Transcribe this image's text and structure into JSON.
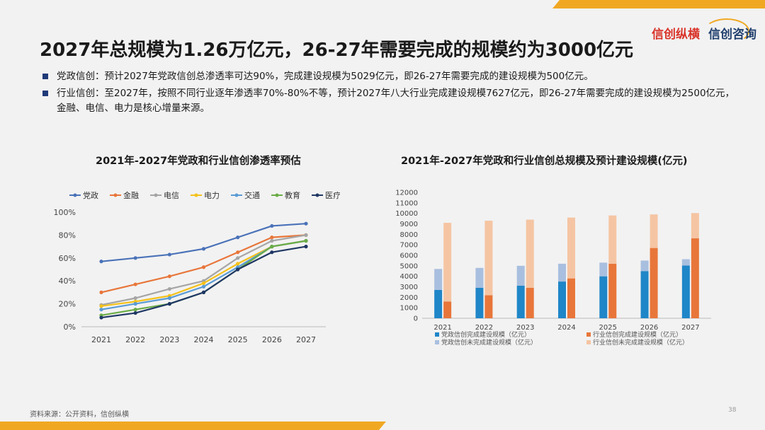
{
  "header": {
    "title": "2027年总规模为1.26万亿元，26-27年需要完成的规模约为3000亿元",
    "logo_left": "信创纵横",
    "logo_right": "信创咨询"
  },
  "bullets": [
    "党政信创：预计2027年党政信创总渗透率可达90%，完成建设规模为5029亿元，即26-27年需要完成的建设规模为500亿元。",
    "行业信创：至2027年，按照不同行业逐年渗透率70%-80%不等，预计2027年八大行业完成建设规模7627亿元，即26-27年需要完成的建设规模为2500亿元，金融、电信、电力是核心增量来源。"
  ],
  "chart_data": [
    {
      "type": "line",
      "title": "2021年-2027年党政和行业信创渗透率预估",
      "x": [
        "2021",
        "2022",
        "2023",
        "2024",
        "2025",
        "2026",
        "2027"
      ],
      "yticks": [
        "0%",
        "20%",
        "40%",
        "60%",
        "80%",
        "100%"
      ],
      "ylim": [
        0,
        100
      ],
      "legend": "top",
      "series": [
        {
          "name": "党政",
          "color": "#4a72b8",
          "values": [
            57,
            60,
            63,
            68,
            78,
            88,
            90
          ]
        },
        {
          "name": "金融",
          "color": "#e8763a",
          "values": [
            30,
            37,
            44,
            52,
            65,
            78,
            80
          ]
        },
        {
          "name": "电信",
          "color": "#a5a5a5",
          "values": [
            19,
            25,
            33,
            40,
            60,
            75,
            80
          ]
        },
        {
          "name": "电力",
          "color": "#f4c21a",
          "values": [
            18,
            22,
            27,
            38,
            55,
            70,
            75
          ]
        },
        {
          "name": "交通",
          "color": "#5a9bd5",
          "values": [
            15,
            20,
            25,
            35,
            52,
            70,
            75
          ]
        },
        {
          "name": "教育",
          "color": "#6aac46",
          "values": [
            10,
            15,
            20,
            30,
            50,
            70,
            75
          ]
        },
        {
          "name": "医疗",
          "color": "#1f3764",
          "values": [
            8,
            12,
            20,
            30,
            50,
            65,
            70
          ]
        }
      ]
    },
    {
      "type": "bar",
      "title": "2021年-2027年党政和行业信创总规模及预计建设规模(亿元)",
      "categories": [
        "2021",
        "2022",
        "2023",
        "2024",
        "2025",
        "2026",
        "2027"
      ],
      "yticks": [
        "0",
        "1000",
        "2000",
        "3000",
        "4000",
        "5000",
        "6000",
        "7000",
        "8000",
        "9000",
        "10000",
        "11000",
        "12000"
      ],
      "ylim": [
        0,
        12000
      ],
      "legend": "bottom",
      "series": [
        {
          "name": "党政信创完成建设规模（亿元）",
          "color": "#1f86c8",
          "stack": "党政",
          "values": [
            2700,
            2900,
            3100,
            3500,
            4000,
            4500,
            5029
          ]
        },
        {
          "name": "党政信创未完成建设规模（亿元）",
          "color": "#a9bfdf",
          "stack": "党政",
          "values": [
            2000,
            1900,
            1900,
            1700,
            1300,
            1000,
            600
          ]
        },
        {
          "name": "行业信创完成建设规模（亿元）",
          "color": "#e8763a",
          "stack": "行业",
          "values": [
            1600,
            2200,
            2900,
            3800,
            5200,
            6700,
            7627
          ]
        },
        {
          "name": "行业信创未完成建设规模（亿元）",
          "color": "#f5c5a3",
          "stack": "行业",
          "values": [
            7500,
            7100,
            6500,
            5800,
            4600,
            3200,
            2400
          ]
        }
      ]
    }
  ],
  "footer": {
    "source": "资料来源：公开资料，信创纵横",
    "page": "38"
  }
}
